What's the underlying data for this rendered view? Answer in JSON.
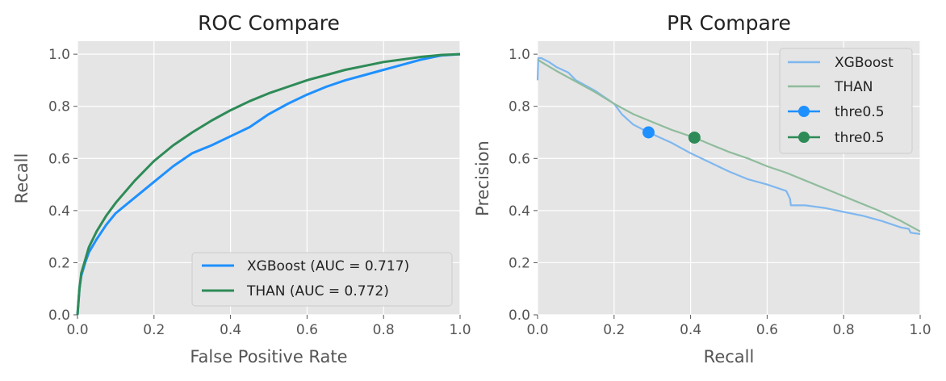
{
  "chart_data": [
    {
      "type": "line",
      "title": "ROC Compare",
      "xlabel": "False Positive Rate",
      "ylabel": "Recall",
      "xlim": [
        0,
        1
      ],
      "ylim": [
        0,
        1.05
      ],
      "xticks": [
        "0.0",
        "0.2",
        "0.4",
        "0.6",
        "0.8",
        "1.0"
      ],
      "yticks": [
        "0.0",
        "0.2",
        "0.4",
        "0.6",
        "0.8",
        "1.0"
      ],
      "grid": true,
      "legend": "lower right",
      "series": [
        {
          "name": "XGBoost (AUC = 0.717)",
          "color": "#1e90ff",
          "x": [
            0,
            0.005,
            0.01,
            0.02,
            0.03,
            0.05,
            0.075,
            0.1,
            0.15,
            0.2,
            0.25,
            0.3,
            0.35,
            0.4,
            0.45,
            0.5,
            0.55,
            0.6,
            0.65,
            0.7,
            0.75,
            0.8,
            0.85,
            0.9,
            0.95,
            1.0
          ],
          "y": [
            0,
            0.1,
            0.15,
            0.2,
            0.24,
            0.29,
            0.345,
            0.39,
            0.45,
            0.51,
            0.57,
            0.62,
            0.65,
            0.685,
            0.72,
            0.77,
            0.81,
            0.845,
            0.875,
            0.9,
            0.92,
            0.94,
            0.96,
            0.98,
            0.995,
            1.0
          ]
        },
        {
          "name": "THAN (AUC = 0.772)",
          "color": "#2e8b57",
          "x": [
            0,
            0.005,
            0.01,
            0.02,
            0.03,
            0.05,
            0.075,
            0.1,
            0.15,
            0.2,
            0.25,
            0.3,
            0.35,
            0.4,
            0.45,
            0.5,
            0.55,
            0.6,
            0.65,
            0.7,
            0.75,
            0.8,
            0.85,
            0.9,
            0.95,
            1.0
          ],
          "y": [
            0,
            0.1,
            0.16,
            0.21,
            0.26,
            0.32,
            0.38,
            0.43,
            0.515,
            0.59,
            0.65,
            0.7,
            0.745,
            0.785,
            0.82,
            0.85,
            0.875,
            0.9,
            0.92,
            0.94,
            0.955,
            0.97,
            0.98,
            0.99,
            0.997,
            1.0
          ]
        }
      ]
    },
    {
      "type": "line",
      "title": "PR Compare",
      "xlabel": "Recall",
      "ylabel": "Precision",
      "xlim": [
        0,
        1
      ],
      "ylim": [
        0,
        1.05
      ],
      "xticks": [
        "0.0",
        "0.2",
        "0.4",
        "0.6",
        "0.8",
        "1.0"
      ],
      "yticks": [
        "0.0",
        "0.2",
        "0.4",
        "0.6",
        "0.8",
        "1.0"
      ],
      "grid": true,
      "legend": "upper right",
      "series": [
        {
          "name": "XGBoost",
          "color": "#7fb7ef",
          "x": [
            0,
            0.002,
            0.01,
            0.03,
            0.05,
            0.08,
            0.1,
            0.15,
            0.2,
            0.22,
            0.25,
            0.29,
            0.35,
            0.4,
            0.45,
            0.5,
            0.55,
            0.6,
            0.65,
            0.66,
            0.662,
            0.7,
            0.75,
            0.8,
            0.85,
            0.9,
            0.95,
            0.97,
            0.975,
            1.0
          ],
          "y": [
            0.9,
            0.985,
            0.985,
            0.97,
            0.95,
            0.93,
            0.9,
            0.86,
            0.81,
            0.77,
            0.73,
            0.7,
            0.66,
            0.62,
            0.585,
            0.55,
            0.52,
            0.5,
            0.475,
            0.445,
            0.42,
            0.42,
            0.41,
            0.395,
            0.38,
            0.36,
            0.335,
            0.33,
            0.315,
            0.31
          ]
        },
        {
          "name": "THAN",
          "color": "#8fbc9c",
          "x": [
            0,
            0.01,
            0.05,
            0.1,
            0.15,
            0.2,
            0.25,
            0.3,
            0.35,
            0.41,
            0.45,
            0.5,
            0.55,
            0.6,
            0.65,
            0.7,
            0.75,
            0.8,
            0.85,
            0.9,
            0.95,
            1.0
          ],
          "y": [
            0.98,
            0.97,
            0.935,
            0.895,
            0.855,
            0.81,
            0.77,
            0.74,
            0.71,
            0.68,
            0.655,
            0.625,
            0.6,
            0.57,
            0.545,
            0.515,
            0.485,
            0.455,
            0.425,
            0.395,
            0.36,
            0.32
          ]
        }
      ],
      "points": [
        {
          "name": "thre0.5",
          "color": "#1e90ff",
          "x": 0.29,
          "y": 0.7
        },
        {
          "name": "thre0.5",
          "color": "#2e8b57",
          "x": 0.41,
          "y": 0.68
        }
      ]
    }
  ]
}
